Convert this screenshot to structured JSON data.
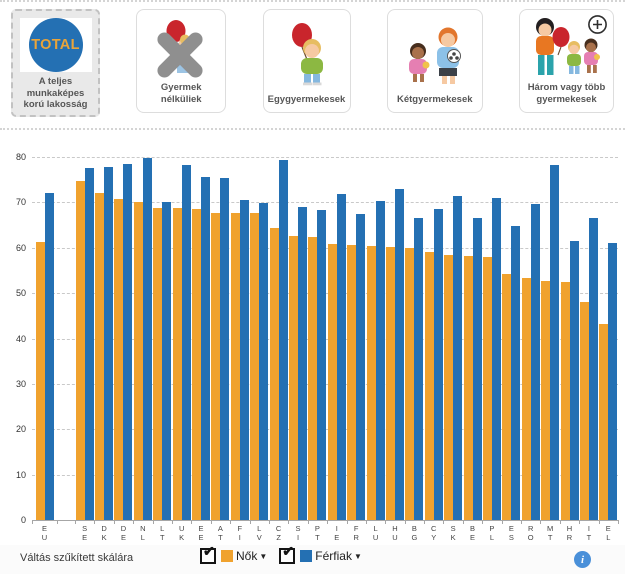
{
  "tabs": [
    {
      "id": "total",
      "badge": "TOTAL",
      "label": "A teljes munkaképes korú lakosság",
      "selected": true
    },
    {
      "id": "no-children",
      "label": "Gyermek nélküliek",
      "selected": false
    },
    {
      "id": "one-child",
      "label": "Egygyermekesek",
      "selected": false
    },
    {
      "id": "two-children",
      "label": "Kétgyermekesek",
      "selected": false
    },
    {
      "id": "three-plus-children",
      "label": "Három vagy több gyermekesek",
      "selected": false,
      "has_plus_icon": true
    }
  ],
  "chart_data": {
    "type": "bar",
    "title": "",
    "xlabel": "",
    "ylabel": "",
    "ylim": [
      0,
      80
    ],
    "yticks": [
      0,
      10,
      20,
      30,
      40,
      50,
      60,
      70,
      80
    ],
    "grid": "horizontal-dashed",
    "legend_position": "bottom",
    "separator_after_first_category": true,
    "categories": [
      "EU",
      "SE",
      "DK",
      "DE",
      "NL",
      "LT",
      "UK",
      "EE",
      "AT",
      "FI",
      "LV",
      "CZ",
      "SI",
      "PT",
      "IE",
      "FR",
      "LU",
      "HU",
      "BG",
      "CY",
      "SK",
      "BE",
      "PL",
      "ES",
      "RO",
      "MT",
      "HR",
      "IT",
      "EL"
    ],
    "series": [
      {
        "name": "Nők",
        "color": "#f0a22e",
        "values": [
          61.3,
          74.8,
          72.0,
          70.8,
          70.1,
          68.8,
          68.8,
          68.6,
          67.7,
          67.6,
          67.6,
          64.4,
          62.6,
          62.4,
          60.9,
          60.7,
          60.4,
          60.2,
          60.0,
          59.0,
          58.3,
          58.1,
          57.9,
          54.3,
          53.3,
          52.6,
          52.4,
          48.1,
          43.3
        ]
      },
      {
        "name": "Férfiak",
        "color": "#2470b3",
        "values": [
          72.0,
          77.5,
          77.7,
          78.4,
          79.7,
          70.0,
          78.3,
          75.7,
          75.4,
          70.5,
          69.8,
          79.3,
          68.9,
          68.3,
          71.8,
          67.5,
          70.3,
          73.0,
          66.6,
          68.6,
          71.4,
          66.5,
          71.0,
          64.8,
          69.7,
          78.3,
          61.4,
          66.5,
          61.0
        ]
      }
    ]
  },
  "legend": [
    {
      "label": "Nők",
      "checked": true,
      "color": "#f0a22e"
    },
    {
      "label": "Férfiak",
      "checked": true,
      "color": "#2470b3"
    }
  ],
  "footer": {
    "scale_link": "Váltás szűkített skálára",
    "info_icon": "i"
  }
}
